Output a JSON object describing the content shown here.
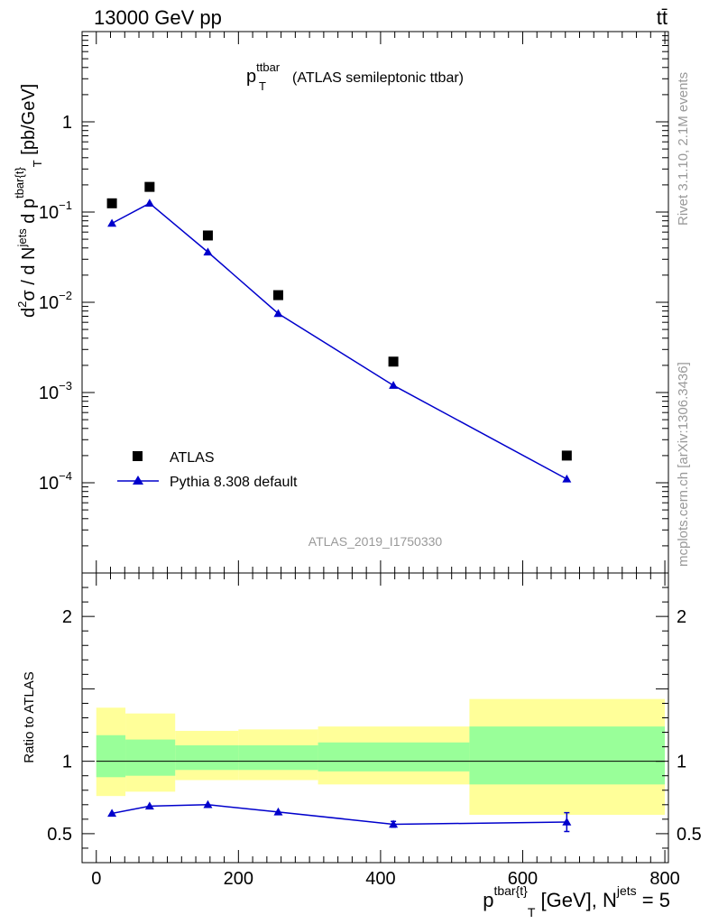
{
  "header": {
    "collision": "13000 GeV pp",
    "process": "tt̄"
  },
  "side_labels": {
    "rivet": "Rivet 3.1.10,  2.1M events",
    "mcplots": "mcplots.cern.ch [arXiv:1306.3436]"
  },
  "chart_data": [
    {
      "type": "scatter",
      "panel": "main",
      "title": "p_T^ttbar (ATLAS semileptonic ttbar)",
      "title_parts": {
        "p": "p",
        "sup": "ttbar",
        "sub": "T",
        "rest": "(ATLAS semileptonic ttbar)"
      },
      "analysis_id": "ATLAS_2019_I1750330",
      "ylabel": "d²σ / d N^jets d p^tbar{t}_T [pb/GeV]",
      "ylabel_parts": {
        "a": "d",
        "a_sup": "2",
        "b": "σ  /  d N",
        "b_sup": "jets",
        "c": " d p",
        "c_sup": "tbar{t}",
        "c_sub": "T",
        "d": " [pb/GeV]"
      },
      "yscale": "log",
      "ylim": [
        1e-05,
        10
      ],
      "xlim": [
        -20,
        805
      ],
      "y_ticks": [
        {
          "v": 1,
          "base": "1",
          "exp": ""
        },
        {
          "v": 0.1,
          "base": "10",
          "exp": "−1"
        },
        {
          "v": 0.01,
          "base": "10",
          "exp": "−2"
        },
        {
          "v": 0.001,
          "base": "10",
          "exp": "−3"
        },
        {
          "v": 0.0001,
          "base": "10",
          "exp": "−4"
        }
      ],
      "legend_position": "bottom-left",
      "series": [
        {
          "name": "ATLAS",
          "marker": "square",
          "color": "#000000",
          "x": [
            22,
            75,
            157,
            256,
            418,
            662
          ],
          "y": [
            0.125,
            0.19,
            0.055,
            0.012,
            0.0022,
            0.0002
          ]
        },
        {
          "name": "Pythia 8.308 default",
          "marker": "triangle",
          "color": "#0000cc",
          "x": [
            22,
            75,
            157,
            256,
            418,
            662
          ],
          "y": [
            0.075,
            0.125,
            0.036,
            0.0075,
            0.0012,
            0.00011
          ]
        }
      ]
    },
    {
      "type": "line",
      "panel": "ratio",
      "ylabel": "Ratio to ATLAS",
      "xlabel": "p^tbar{t}_T [GeV], N^jets = 5",
      "xlabel_parts": {
        "p": "p",
        "p_sup": "tbar{t}",
        "p_sub": "T",
        "mid": " [GeV], N",
        "n_sup": "jets",
        "end": " = 5"
      },
      "xlim": [
        -20,
        805
      ],
      "ylim": [
        0.3,
        2.3
      ],
      "x_ticks": [
        {
          "v": 0,
          "label": "0"
        },
        {
          "v": 200,
          "label": "200"
        },
        {
          "v": 400,
          "label": "400"
        },
        {
          "v": 600,
          "label": "600"
        },
        {
          "v": 800,
          "label": "800"
        }
      ],
      "y_ticks": [
        {
          "v": 0.5,
          "label": "0.5"
        },
        {
          "v": 1,
          "label": "1"
        },
        {
          "v": 2,
          "label": "2"
        }
      ],
      "reference_line": 1,
      "uncertainty_bands": {
        "outer_color": "#ffff99",
        "inner_color": "#99ff99",
        "bins": [
          {
            "x0": 0,
            "x1": 41,
            "outer": [
              0.76,
              1.37
            ],
            "inner": [
              0.89,
              1.18
            ]
          },
          {
            "x0": 41,
            "x1": 111,
            "outer": [
              0.79,
              1.33
            ],
            "inner": [
              0.9,
              1.15
            ]
          },
          {
            "x0": 111,
            "x1": 200,
            "outer": [
              0.87,
              1.21
            ],
            "inner": [
              0.94,
              1.11
            ]
          },
          {
            "x0": 200,
            "x1": 312,
            "outer": [
              0.87,
              1.22
            ],
            "inner": [
              0.94,
              1.11
            ]
          },
          {
            "x0": 312,
            "x1": 525,
            "outer": [
              0.84,
              1.24
            ],
            "inner": [
              0.93,
              1.13
            ]
          },
          {
            "x0": 525,
            "x1": 800,
            "outer": [
              0.63,
              1.43
            ],
            "inner": [
              0.84,
              1.24
            ]
          }
        ]
      },
      "series": [
        {
          "name": "Pythia 8.308 default",
          "marker": "triangle",
          "color": "#0000cc",
          "x": [
            22,
            75,
            157,
            256,
            418,
            662
          ],
          "y": [
            0.64,
            0.69,
            0.7,
            0.65,
            0.565,
            0.58
          ],
          "err": [
            0.005,
            0.005,
            0.005,
            0.005,
            0.02,
            0.065
          ]
        }
      ]
    }
  ]
}
